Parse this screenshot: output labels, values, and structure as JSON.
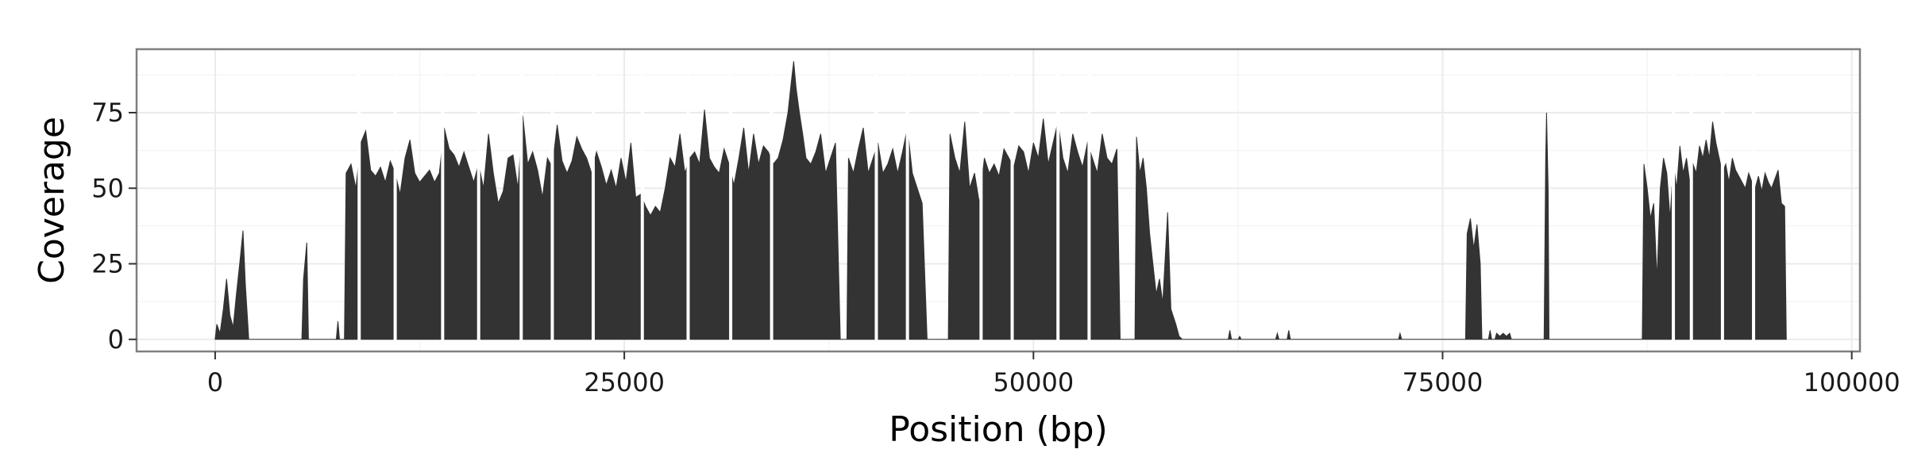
{
  "colors": {
    "bar": "#333333",
    "panel_border": "#7f7f7f",
    "grid_major": "#ebebeb",
    "grid_minor": "#f5f5f5",
    "background": "#ffffff"
  },
  "chart_data": {
    "type": "area",
    "title": "",
    "xlabel": "Position (bp)",
    "ylabel": "Coverage",
    "xlim": [
      -4800,
      100500
    ],
    "ylim": [
      -4,
      96
    ],
    "x_ticks": [
      0,
      25000,
      50000,
      75000,
      100000
    ],
    "x_tick_labels": [
      "0",
      "25000",
      "50000",
      "75000",
      "100000"
    ],
    "y_ticks": [
      0,
      25,
      50,
      75
    ],
    "y_tick_labels": [
      "0",
      "25",
      "50",
      "75"
    ],
    "grid": true,
    "legend": "none",
    "series": [
      {
        "values": [
          [
            0,
            0
          ],
          [
            100,
            5
          ],
          [
            300,
            2
          ],
          [
            500,
            10
          ],
          [
            700,
            20
          ],
          [
            900,
            8
          ],
          [
            1100,
            4
          ],
          [
            1300,
            15
          ],
          [
            1500,
            25
          ],
          [
            1700,
            36
          ],
          [
            1850,
            18
          ],
          [
            2000,
            5
          ],
          [
            2050,
            0
          ],
          [
            5300,
            0
          ],
          [
            5400,
            20
          ],
          [
            5600,
            32
          ],
          [
            5700,
            0
          ],
          [
            7400,
            0
          ],
          [
            7500,
            6
          ],
          [
            7600,
            0
          ],
          [
            7900,
            0
          ],
          [
            8000,
            55
          ],
          [
            8300,
            58
          ],
          [
            8600,
            50
          ],
          [
            8900,
            65
          ],
          [
            9200,
            69
          ],
          [
            9500,
            56
          ],
          [
            9800,
            54
          ],
          [
            10100,
            57
          ],
          [
            10400,
            52
          ],
          [
            10700,
            59
          ],
          [
            11000,
            55
          ],
          [
            11300,
            48
          ],
          [
            11600,
            60
          ],
          [
            11900,
            66
          ],
          [
            12200,
            55
          ],
          [
            12500,
            52
          ],
          [
            12800,
            54
          ],
          [
            13100,
            56
          ],
          [
            13400,
            52
          ],
          [
            13700,
            55
          ],
          [
            14000,
            70
          ],
          [
            14300,
            63
          ],
          [
            14600,
            61
          ],
          [
            14900,
            57
          ],
          [
            15200,
            62
          ],
          [
            15500,
            57
          ],
          [
            15800,
            52
          ],
          [
            16100,
            58
          ],
          [
            16400,
            50
          ],
          [
            16700,
            68
          ],
          [
            17000,
            55
          ],
          [
            17300,
            45
          ],
          [
            17600,
            49
          ],
          [
            17900,
            60
          ],
          [
            18200,
            61
          ],
          [
            18500,
            50
          ],
          [
            18800,
            74
          ],
          [
            19100,
            58
          ],
          [
            19400,
            62
          ],
          [
            19700,
            56
          ],
          [
            20000,
            47
          ],
          [
            20300,
            60
          ],
          [
            20600,
            57
          ],
          [
            20900,
            71
          ],
          [
            21200,
            59
          ],
          [
            21500,
            55
          ],
          [
            21800,
            59
          ],
          [
            22100,
            67
          ],
          [
            22400,
            63
          ],
          [
            22700,
            60
          ],
          [
            23000,
            55
          ],
          [
            23300,
            62
          ],
          [
            23600,
            57
          ],
          [
            23900,
            51
          ],
          [
            24200,
            56
          ],
          [
            24500,
            50
          ],
          [
            24800,
            60
          ],
          [
            25100,
            52
          ],
          [
            25400,
            65
          ],
          [
            25700,
            47
          ],
          [
            26000,
            48
          ],
          [
            26300,
            44
          ],
          [
            26600,
            41
          ],
          [
            26900,
            44
          ],
          [
            27200,
            42
          ],
          [
            27500,
            50
          ],
          [
            27800,
            60
          ],
          [
            28100,
            57
          ],
          [
            28400,
            68
          ],
          [
            28700,
            55
          ],
          [
            29000,
            60
          ],
          [
            29300,
            62
          ],
          [
            29600,
            58
          ],
          [
            29900,
            76
          ],
          [
            30200,
            60
          ],
          [
            30500,
            57
          ],
          [
            30800,
            55
          ],
          [
            31100,
            63
          ],
          [
            31400,
            58
          ],
          [
            31700,
            51
          ],
          [
            32000,
            60
          ],
          [
            32300,
            70
          ],
          [
            32600,
            55
          ],
          [
            32900,
            68
          ],
          [
            33200,
            58
          ],
          [
            33500,
            64
          ],
          [
            33800,
            62
          ],
          [
            34100,
            58
          ],
          [
            34400,
            60
          ],
          [
            34700,
            66
          ],
          [
            35000,
            75
          ],
          [
            35200,
            85
          ],
          [
            35350,
            92
          ],
          [
            35500,
            83
          ],
          [
            35700,
            75
          ],
          [
            35900,
            68
          ],
          [
            36100,
            60
          ],
          [
            36400,
            58
          ],
          [
            36700,
            62
          ],
          [
            37000,
            68
          ],
          [
            37300,
            55
          ],
          [
            37600,
            60
          ],
          [
            37900,
            65
          ],
          [
            38200,
            0
          ],
          [
            38600,
            0
          ],
          [
            38700,
            60
          ],
          [
            39000,
            55
          ],
          [
            39300,
            63
          ],
          [
            39600,
            70
          ],
          [
            39900,
            55
          ],
          [
            40200,
            60
          ],
          [
            40500,
            65
          ],
          [
            40800,
            55
          ],
          [
            41100,
            58
          ],
          [
            41400,
            63
          ],
          [
            41700,
            55
          ],
          [
            42000,
            62
          ],
          [
            42300,
            70
          ],
          [
            42600,
            55
          ],
          [
            42900,
            50
          ],
          [
            43200,
            45
          ],
          [
            43500,
            0
          ],
          [
            44800,
            0
          ],
          [
            44900,
            68
          ],
          [
            45200,
            60
          ],
          [
            45500,
            55
          ],
          [
            45800,
            72
          ],
          [
            46100,
            50
          ],
          [
            46400,
            55
          ],
          [
            46700,
            45
          ],
          [
            47000,
            60
          ],
          [
            47300,
            55
          ],
          [
            47600,
            58
          ],
          [
            47900,
            54
          ],
          [
            48200,
            63
          ],
          [
            48500,
            60
          ],
          [
            48800,
            57
          ],
          [
            49100,
            64
          ],
          [
            49400,
            62
          ],
          [
            49700,
            55
          ],
          [
            50000,
            65
          ],
          [
            50300,
            60
          ],
          [
            50600,
            73
          ],
          [
            50900,
            58
          ],
          [
            51200,
            65
          ],
          [
            51500,
            72
          ],
          [
            51800,
            60
          ],
          [
            52100,
            55
          ],
          [
            52400,
            68
          ],
          [
            52700,
            62
          ],
          [
            53000,
            57
          ],
          [
            53300,
            65
          ],
          [
            53600,
            60
          ],
          [
            53900,
            55
          ],
          [
            54200,
            68
          ],
          [
            54500,
            60
          ],
          [
            54800,
            58
          ],
          [
            55100,
            63
          ],
          [
            55300,
            0
          ],
          [
            56200,
            0
          ],
          [
            56300,
            67
          ],
          [
            56500,
            55
          ],
          [
            56700,
            60
          ],
          [
            56900,
            50
          ],
          [
            57100,
            35
          ],
          [
            57300,
            25
          ],
          [
            57500,
            15
          ],
          [
            57700,
            20
          ],
          [
            57900,
            12
          ],
          [
            58200,
            42
          ],
          [
            58400,
            10
          ],
          [
            58700,
            5
          ],
          [
            58900,
            1
          ],
          [
            59100,
            0
          ],
          [
            61900,
            0
          ],
          [
            62000,
            3
          ],
          [
            62100,
            0
          ],
          [
            62500,
            0
          ],
          [
            62600,
            1
          ],
          [
            62700,
            0
          ],
          [
            64800,
            0
          ],
          [
            64900,
            2
          ],
          [
            65000,
            0
          ],
          [
            65500,
            0
          ],
          [
            65600,
            3
          ],
          [
            65700,
            0
          ],
          [
            72300,
            0
          ],
          [
            72400,
            2
          ],
          [
            72500,
            0
          ],
          [
            76400,
            0
          ],
          [
            76500,
            35
          ],
          [
            76700,
            40
          ],
          [
            76900,
            30
          ],
          [
            77100,
            38
          ],
          [
            77300,
            25
          ],
          [
            77400,
            0
          ],
          [
            77800,
            0
          ],
          [
            77900,
            3
          ],
          [
            78000,
            0
          ],
          [
            78200,
            0
          ],
          [
            78300,
            2
          ],
          [
            78500,
            1
          ],
          [
            78700,
            2
          ],
          [
            78900,
            1
          ],
          [
            79100,
            2
          ],
          [
            79200,
            0
          ],
          [
            81200,
            0
          ],
          [
            81300,
            60
          ],
          [
            81350,
            75
          ],
          [
            81450,
            50
          ],
          [
            81500,
            0
          ],
          [
            87200,
            0
          ],
          [
            87300,
            58
          ],
          [
            87500,
            50
          ],
          [
            87700,
            40
          ],
          [
            87900,
            45
          ],
          [
            88100,
            20
          ],
          [
            88300,
            50
          ],
          [
            88500,
            60
          ],
          [
            88700,
            55
          ],
          [
            88900,
            40
          ],
          [
            89100,
            58
          ],
          [
            89300,
            50
          ],
          [
            89500,
            64
          ],
          [
            89700,
            55
          ],
          [
            89900,
            60
          ],
          [
            90100,
            52
          ],
          [
            90300,
            58
          ],
          [
            90500,
            55
          ],
          [
            90700,
            64
          ],
          [
            90900,
            60
          ],
          [
            91100,
            66
          ],
          [
            91300,
            60
          ],
          [
            91500,
            72
          ],
          [
            91700,
            65
          ],
          [
            91900,
            60
          ],
          [
            92100,
            55
          ],
          [
            92300,
            58
          ],
          [
            92500,
            52
          ],
          [
            92700,
            60
          ],
          [
            92900,
            56
          ],
          [
            93100,
            54
          ],
          [
            93300,
            52
          ],
          [
            93500,
            50
          ],
          [
            93700,
            55
          ],
          [
            93900,
            52
          ],
          [
            94100,
            50
          ],
          [
            94300,
            54
          ],
          [
            94500,
            49
          ],
          [
            94700,
            55
          ],
          [
            94900,
            52
          ],
          [
            95100,
            50
          ],
          [
            95300,
            53
          ],
          [
            95500,
            56
          ],
          [
            95700,
            45
          ],
          [
            95900,
            44
          ],
          [
            96000,
            0
          ]
        ]
      }
    ],
    "gaps": [
      8800,
      11000,
      13900,
      16100,
      18700,
      20600,
      23100,
      26100,
      28900,
      31500,
      34000,
      40400,
      42300,
      46800,
      48700,
      51500,
      53400,
      89100,
      90200,
      92100,
      94000
    ]
  }
}
